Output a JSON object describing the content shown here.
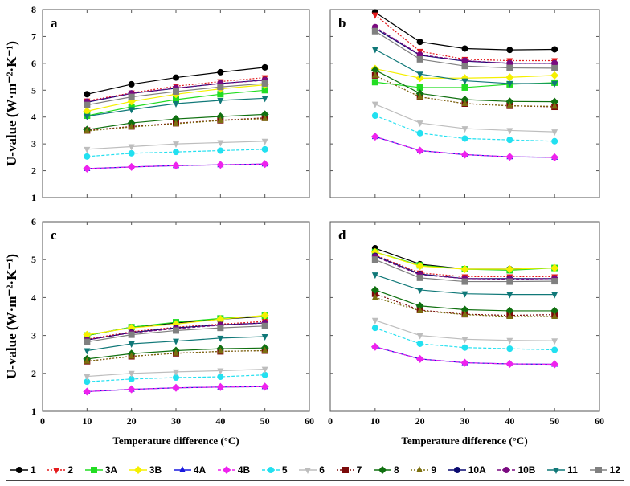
{
  "chart_data": {
    "type": "line",
    "ylabel": "U-value (W·m⁻²·K⁻¹)",
    "xlabel": "Temperature difference (°C)",
    "x": [
      10,
      20,
      30,
      40,
      50
    ],
    "xlim": [
      0,
      60
    ],
    "xticks": [
      0,
      10,
      20,
      30,
      40,
      50,
      60
    ],
    "legend_placement": "bottom",
    "series_styles": [
      {
        "name": "1",
        "color": "#000000",
        "marker": "circle",
        "dash": ""
      },
      {
        "name": "2",
        "color": "#e41a1c",
        "marker": "tri-down",
        "dash": "2,2"
      },
      {
        "name": "3A",
        "color": "#22dd22",
        "marker": "square",
        "dash": ""
      },
      {
        "name": "3B",
        "color": "#f5f000",
        "marker": "diamond",
        "dash": ""
      },
      {
        "name": "4A",
        "color": "#1a1adf",
        "marker": "tri-up",
        "dash": ""
      },
      {
        "name": "4B",
        "color": "#ee22ee",
        "marker": "diamond",
        "dash": "4,2"
      },
      {
        "name": "5",
        "color": "#22e0f0",
        "marker": "circle",
        "dash": "4,2"
      },
      {
        "name": "6",
        "color": "#bdbdbd",
        "marker": "tri-down",
        "dash": ""
      },
      {
        "name": "7",
        "color": "#7b0a0a",
        "marker": "square",
        "dash": "2,2"
      },
      {
        "name": "8",
        "color": "#107010",
        "marker": "diamond",
        "dash": ""
      },
      {
        "name": "9",
        "color": "#7c7010",
        "marker": "tri-up",
        "dash": "2,2"
      },
      {
        "name": "10A",
        "color": "#0a0a70",
        "marker": "circle",
        "dash": ""
      },
      {
        "name": "10B",
        "color": "#7a0a80",
        "marker": "circle",
        "dash": "4,2"
      },
      {
        "name": "11",
        "color": "#107878",
        "marker": "tri-down",
        "dash": ""
      },
      {
        "name": "12",
        "color": "#808080",
        "marker": "square",
        "dash": ""
      }
    ],
    "panels": [
      {
        "label": "a",
        "ylim": [
          1,
          8
        ],
        "yticks": [
          1,
          2,
          3,
          4,
          5,
          6,
          7,
          8
        ],
        "series": {
          "1": [
            4.85,
            5.22,
            5.47,
            5.67,
            5.85
          ],
          "2": [
            4.6,
            4.9,
            5.15,
            5.32,
            5.47
          ],
          "3A": [
            4.05,
            4.38,
            4.65,
            4.85,
            5.0
          ],
          "3B": [
            4.22,
            4.58,
            4.85,
            5.05,
            5.2
          ],
          "4A": [
            2.08,
            2.14,
            2.19,
            2.22,
            2.25
          ],
          "4B": [
            2.08,
            2.14,
            2.19,
            2.22,
            2.25
          ],
          "5": [
            2.53,
            2.65,
            2.7,
            2.75,
            2.8
          ],
          "6": [
            2.8,
            2.9,
            3.0,
            3.05,
            3.1
          ],
          "7": [
            3.5,
            3.65,
            3.77,
            3.88,
            3.97
          ],
          "8": [
            3.53,
            3.78,
            3.93,
            4.02,
            4.1
          ],
          "9": [
            3.48,
            3.63,
            3.75,
            3.87,
            3.94
          ],
          "10A": [
            4.55,
            4.88,
            5.07,
            5.25,
            5.38
          ],
          "10B": [
            4.57,
            4.88,
            5.08,
            5.25,
            5.37
          ],
          "11": [
            4.03,
            4.28,
            4.5,
            4.62,
            4.7
          ],
          "12": [
            4.45,
            4.75,
            4.95,
            5.12,
            5.25
          ]
        }
      },
      {
        "label": "b",
        "ylim": [
          1,
          8
        ],
        "yticks": [
          1,
          2,
          3,
          4,
          5,
          6,
          7,
          8
        ],
        "series": {
          "1": [
            7.9,
            6.8,
            6.55,
            6.5,
            6.52
          ],
          "2": [
            7.8,
            6.45,
            6.15,
            6.1,
            6.1
          ],
          "3A": [
            5.3,
            5.1,
            5.1,
            5.22,
            5.28
          ],
          "3B": [
            5.8,
            5.45,
            5.45,
            5.48,
            5.55
          ],
          "4A": [
            3.27,
            2.75,
            2.6,
            2.52,
            2.5
          ],
          "4B": [
            3.27,
            2.75,
            2.6,
            2.52,
            2.5
          ],
          "5": [
            4.05,
            3.4,
            3.2,
            3.15,
            3.1
          ],
          "6": [
            4.48,
            3.78,
            3.57,
            3.5,
            3.45
          ],
          "7": [
            5.55,
            4.75,
            4.5,
            4.42,
            4.38
          ],
          "8": [
            5.75,
            4.88,
            4.65,
            4.58,
            4.57
          ],
          "9": [
            5.55,
            4.75,
            4.5,
            4.42,
            4.4
          ],
          "10A": [
            7.3,
            6.3,
            6.08,
            6.0,
            6.0
          ],
          "10B": [
            7.35,
            6.32,
            6.1,
            6.0,
            6.0
          ],
          "11": [
            6.52,
            5.6,
            5.35,
            5.25,
            5.25
          ],
          "12": [
            7.2,
            6.15,
            5.9,
            5.83,
            5.82
          ]
        }
      },
      {
        "label": "c",
        "ylim": [
          1,
          6
        ],
        "yticks": [
          1,
          2,
          3,
          4,
          5,
          6
        ],
        "series": {
          "1": [
            3.0,
            3.22,
            3.33,
            3.43,
            3.5
          ],
          "2": [
            2.9,
            3.1,
            3.22,
            3.3,
            3.37
          ],
          "3A": [
            3.0,
            3.22,
            3.35,
            3.45,
            3.52
          ],
          "3B": [
            3.02,
            3.2,
            3.3,
            3.43,
            3.53
          ],
          "4A": [
            1.52,
            1.58,
            1.62,
            1.64,
            1.65
          ],
          "4B": [
            1.52,
            1.58,
            1.62,
            1.64,
            1.65
          ],
          "5": [
            1.78,
            1.85,
            1.89,
            1.91,
            1.96
          ],
          "6": [
            1.92,
            2.0,
            2.04,
            2.07,
            2.11
          ],
          "7": [
            2.32,
            2.45,
            2.53,
            2.58,
            2.6
          ],
          "8": [
            2.38,
            2.52,
            2.6,
            2.65,
            2.67
          ],
          "9": [
            2.32,
            2.45,
            2.53,
            2.58,
            2.6
          ],
          "10A": [
            2.88,
            3.08,
            3.2,
            3.28,
            3.33
          ],
          "10B": [
            2.88,
            3.07,
            3.18,
            3.27,
            3.33
          ],
          "11": [
            2.6,
            2.78,
            2.85,
            2.93,
            2.97
          ],
          "12": [
            2.83,
            3.02,
            3.13,
            3.2,
            3.25
          ]
        }
      },
      {
        "label": "d",
        "ylim": [
          1,
          6
        ],
        "yticks": [
          1,
          2,
          3,
          4,
          5,
          6
        ],
        "series": {
          "1": [
            5.3,
            4.88,
            4.75,
            4.75,
            4.78
          ],
          "2": [
            5.12,
            4.65,
            4.55,
            4.55,
            4.55
          ],
          "3A": [
            5.2,
            4.85,
            4.75,
            4.72,
            4.78
          ],
          "3B": [
            5.2,
            4.83,
            4.75,
            4.75,
            4.78
          ],
          "4A": [
            2.7,
            2.38,
            2.28,
            2.25,
            2.24
          ],
          "4B": [
            2.7,
            2.38,
            2.28,
            2.25,
            2.24
          ],
          "5": [
            3.2,
            2.78,
            2.68,
            2.65,
            2.62
          ],
          "6": [
            3.4,
            3.0,
            2.9,
            2.87,
            2.86
          ],
          "7": [
            4.1,
            3.67,
            3.56,
            3.53,
            3.55
          ],
          "8": [
            4.2,
            3.78,
            3.68,
            3.65,
            3.65
          ],
          "9": [
            4.0,
            3.65,
            3.55,
            3.5,
            3.5
          ],
          "10A": [
            5.1,
            4.62,
            4.5,
            4.5,
            4.5
          ],
          "10B": [
            5.08,
            4.6,
            4.5,
            4.48,
            4.5
          ],
          "11": [
            4.6,
            4.2,
            4.1,
            4.08,
            4.08
          ],
          "12": [
            5.0,
            4.52,
            4.42,
            4.42,
            4.43
          ]
        }
      }
    ]
  }
}
